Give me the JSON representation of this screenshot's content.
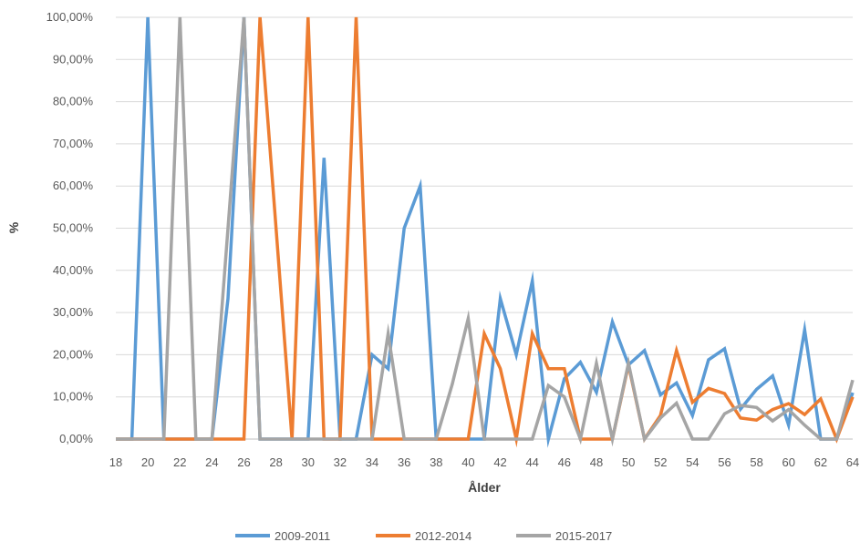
{
  "chart_data": {
    "type": "line",
    "xlabel": "Ålder",
    "ylabel": "%",
    "ylim": [
      0,
      100
    ],
    "xlim": [
      18,
      64
    ],
    "y_ticks": [
      "0,00%",
      "10,00%",
      "20,00%",
      "30,00%",
      "40,00%",
      "50,00%",
      "60,00%",
      "70,00%",
      "80,00%",
      "90,00%",
      "100,00%"
    ],
    "y_tick_values": [
      0,
      10,
      20,
      30,
      40,
      50,
      60,
      70,
      80,
      90,
      100
    ],
    "x_ticks": [
      "18",
      "20",
      "22",
      "24",
      "26",
      "28",
      "30",
      "32",
      "34",
      "36",
      "38",
      "40",
      "42",
      "44",
      "46",
      "48",
      "50",
      "52",
      "54",
      "56",
      "58",
      "60",
      "62",
      "64"
    ],
    "x_tick_values": [
      18,
      20,
      22,
      24,
      26,
      28,
      30,
      32,
      34,
      36,
      38,
      40,
      42,
      44,
      46,
      48,
      50,
      52,
      54,
      56,
      58,
      60,
      62,
      64
    ],
    "grid": "horizontal",
    "legend_position": "bottom",
    "x": [
      18,
      19,
      20,
      21,
      22,
      23,
      24,
      25,
      26,
      27,
      28,
      29,
      30,
      31,
      32,
      33,
      34,
      35,
      36,
      37,
      38,
      39,
      40,
      41,
      42,
      43,
      44,
      45,
      46,
      47,
      48,
      49,
      50,
      51,
      52,
      53,
      54,
      55,
      56,
      57,
      58,
      59,
      60,
      61,
      62,
      63,
      64
    ],
    "series": [
      {
        "name": "2009-2011",
        "color": "#5B9BD5",
        "values": [
          0,
          0,
          100,
          0,
          0,
          0,
          0,
          33.3,
          100,
          0,
          0,
          0,
          0,
          66.7,
          0,
          0,
          20,
          16.7,
          50,
          60,
          0,
          0,
          0,
          0,
          33.3,
          20,
          37.5,
          0,
          14.3,
          18.2,
          11.1,
          27.8,
          17.6,
          21,
          10.5,
          13.3,
          5.6,
          18.8,
          21.4,
          7.1,
          11.8,
          15,
          3.3,
          25.9,
          0,
          0,
          11
        ]
      },
      {
        "name": "2012-2014",
        "color": "#ED7D31",
        "values": [
          0,
          0,
          0,
          0,
          0,
          0,
          0,
          0,
          0,
          100,
          50,
          0,
          100,
          0,
          0,
          100,
          0,
          0,
          0,
          0,
          0,
          0,
          0,
          25,
          16.7,
          0,
          25,
          16.7,
          16.7,
          0,
          0,
          0,
          17.6,
          0,
          5.6,
          21,
          8.7,
          12,
          10.8,
          5,
          4.5,
          7,
          8.4,
          5.8,
          9.5,
          0,
          10
        ]
      },
      {
        "name": "2015-2017",
        "color": "#A5A5A5",
        "values": [
          0,
          0,
          0,
          0,
          100,
          0,
          0,
          50,
          100,
          0,
          0,
          0,
          0,
          0,
          0,
          0,
          0,
          25,
          0,
          0,
          0,
          13,
          28.6,
          0,
          0,
          0,
          0,
          12.7,
          10,
          0,
          18,
          0,
          18,
          0,
          5,
          8.5,
          0,
          0,
          6,
          8,
          7.5,
          4.3,
          7,
          3.3,
          0,
          0,
          14
        ]
      }
    ]
  }
}
